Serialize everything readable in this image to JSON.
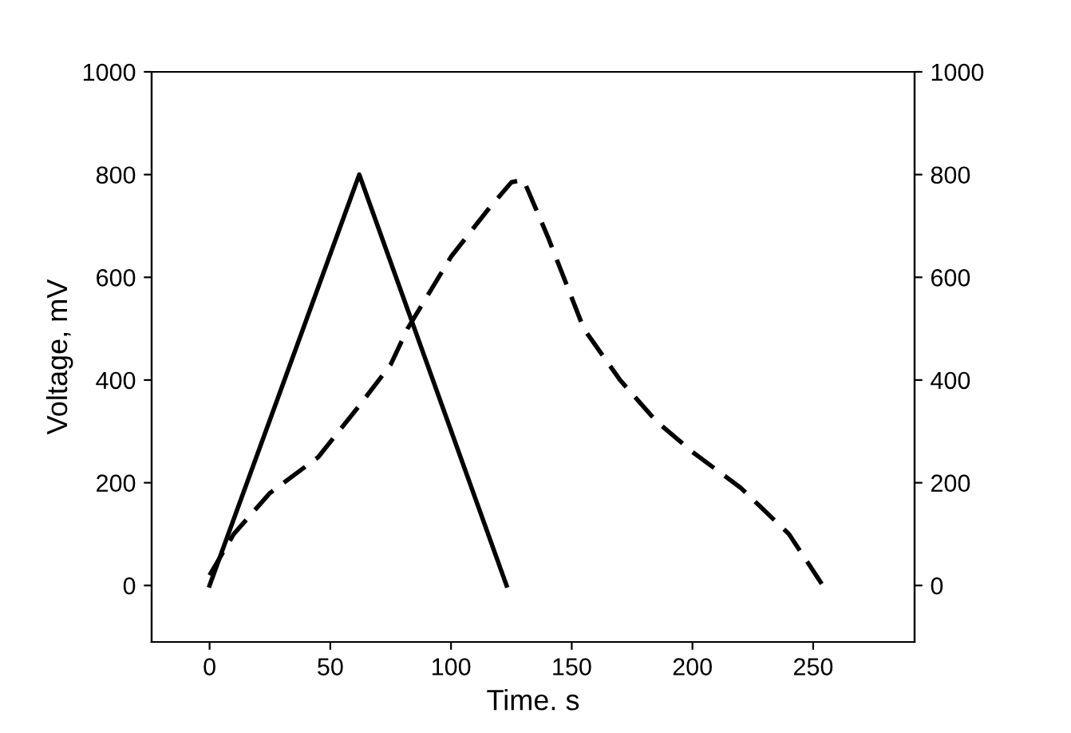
{
  "chart_data": {
    "type": "line",
    "xlabel": "Time. s",
    "ylabel": "Voltage, mV",
    "xlim": [
      -24,
      292
    ],
    "xticks": [
      0,
      50,
      100,
      150,
      200,
      250
    ],
    "ylim": [
      -110,
      1000
    ],
    "yticks": [
      0,
      200,
      400,
      600,
      800,
      1000
    ],
    "y2lim": [
      -110,
      1000
    ],
    "y2ticks": [
      0,
      200,
      400,
      600,
      800,
      1000
    ],
    "grid": false,
    "series": [
      {
        "color": "#000000",
        "line_style": "solid",
        "x": [
          0,
          62,
          123
        ],
        "values": [
          0,
          800,
          0
        ]
      },
      {
        "color": "#000000",
        "line_style": "dashed",
        "x": [
          0,
          10,
          25,
          45,
          62,
          75,
          82,
          100,
          115,
          125,
          130,
          140,
          155,
          170,
          185,
          200,
          220,
          240,
          254
        ],
        "values": [
          20,
          100,
          180,
          250,
          350,
          430,
          500,
          640,
          730,
          785,
          790,
          680,
          500,
          400,
          320,
          260,
          190,
          100,
          0
        ]
      }
    ]
  }
}
